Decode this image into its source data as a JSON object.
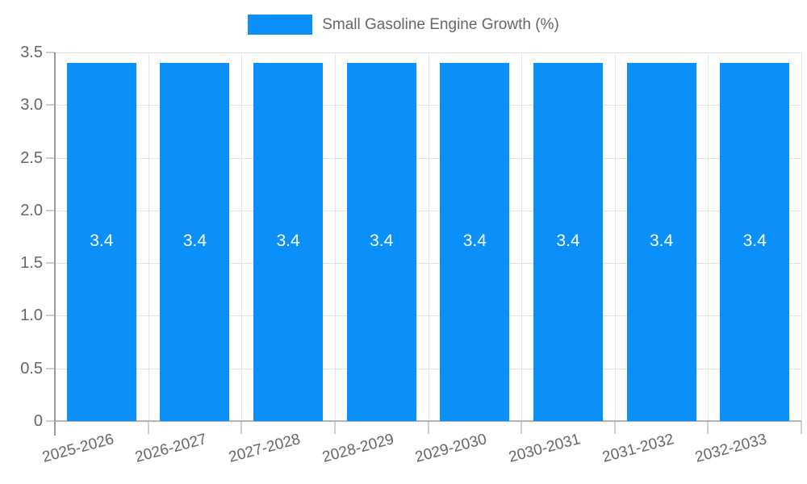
{
  "legend": {
    "label": "Small Gasoline Engine Growth (%)"
  },
  "chart_data": {
    "type": "bar",
    "title": "",
    "xlabel": "",
    "ylabel": "",
    "series_label": "Small Gasoline Engine Growth (%)",
    "categories": [
      "2025-2026",
      "2026-2027",
      "2027-2028",
      "2028-2029",
      "2029-2030",
      "2030-2031",
      "2031-2032",
      "2032-2033"
    ],
    "values": [
      3.4,
      3.4,
      3.4,
      3.4,
      3.4,
      3.4,
      3.4,
      3.4
    ],
    "data_labels": [
      "3.4",
      "3.4",
      "3.4",
      "3.4",
      "3.4",
      "3.4",
      "3.4",
      "3.4"
    ],
    "ylim": [
      0,
      3.5
    ],
    "yticks": [
      0,
      0.5,
      1.0,
      1.5,
      2.0,
      2.5,
      3.0,
      3.5
    ],
    "ytick_labels": [
      "0",
      "0.5",
      "1.0",
      "1.5",
      "2.0",
      "2.5",
      "3.0",
      "3.5"
    ],
    "grid": true,
    "legend_position": "top",
    "bar_color": "#0a90f8",
    "bar_label_color": "#ffffff",
    "axis_text_color": "#666666",
    "gridline_color": "#e3e3e3"
  }
}
